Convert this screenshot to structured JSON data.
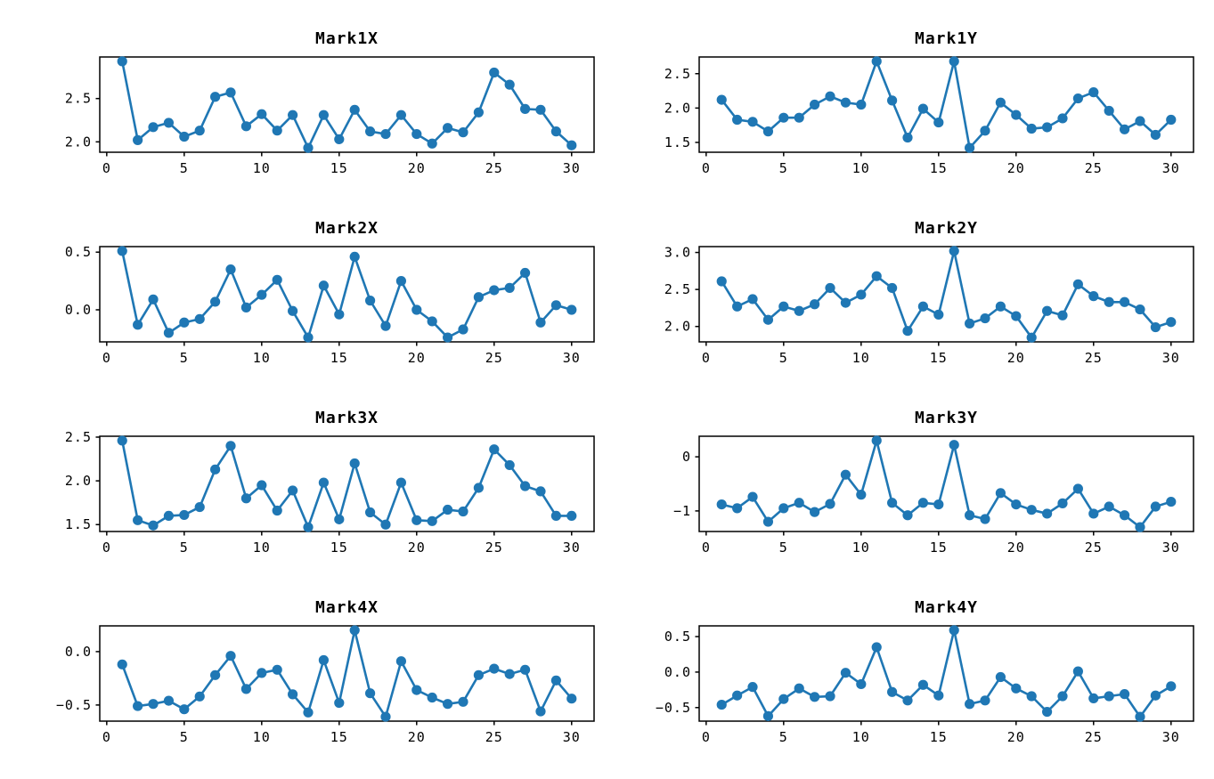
{
  "figure": {
    "background_color": "#ffffff",
    "line_color": "#1f77b4",
    "axes_edge_color": "#000000",
    "text_color": "#000000"
  },
  "chart_data": {
    "type": "line",
    "marker": "o",
    "grid": false,
    "legend": null,
    "layout": "4 rows x 2 columns",
    "x": [
      1,
      2,
      3,
      4,
      5,
      6,
      7,
      8,
      9,
      10,
      11,
      12,
      13,
      14,
      15,
      16,
      17,
      18,
      19,
      20,
      21,
      22,
      23,
      24,
      25,
      26,
      27,
      28,
      29,
      30
    ],
    "xticks": [
      0,
      5,
      10,
      15,
      20,
      25,
      30
    ],
    "xtick_labels": [
      "0",
      "5",
      "10",
      "15",
      "20",
      "25",
      "30"
    ],
    "xlim": [
      -0.45,
      31.45
    ],
    "subplots": [
      {
        "title": "Mark1X",
        "values": [
          2.93,
          2.02,
          2.17,
          2.22,
          2.06,
          2.13,
          2.52,
          2.57,
          2.18,
          2.32,
          2.13,
          2.31,
          1.93,
          2.31,
          2.03,
          2.37,
          2.12,
          2.09,
          2.31,
          2.09,
          1.98,
          2.16,
          2.11,
          2.34,
          2.8,
          2.66,
          2.38,
          2.37,
          2.12,
          1.96
        ],
        "yticks": [
          2.0,
          2.5
        ],
        "ytick_labels": [
          "2.0",
          "2.5"
        ],
        "ylim": [
          1.88,
          2.98
        ]
      },
      {
        "title": "Mark1Y",
        "values": [
          2.12,
          1.83,
          1.8,
          1.66,
          1.86,
          1.86,
          2.05,
          2.17,
          2.08,
          2.05,
          2.68,
          2.11,
          1.57,
          1.99,
          1.79,
          2.68,
          1.42,
          1.67,
          2.08,
          1.9,
          1.7,
          1.72,
          1.85,
          2.14,
          2.23,
          1.96,
          1.69,
          1.81,
          1.61,
          1.83
        ],
        "yticks": [
          1.5,
          2.0,
          2.5
        ],
        "ytick_labels": [
          "1.5",
          "2.0",
          "2.5"
        ],
        "ylim": [
          1.357,
          2.743
        ]
      },
      {
        "title": "Mark2X",
        "values": [
          0.51,
          -0.13,
          0.09,
          -0.2,
          -0.11,
          -0.08,
          0.07,
          0.35,
          0.02,
          0.13,
          0.26,
          -0.01,
          -0.24,
          0.21,
          -0.04,
          0.46,
          0.08,
          -0.14,
          0.25,
          0.0,
          -0.1,
          -0.24,
          -0.17,
          0.11,
          0.17,
          0.19,
          0.32,
          -0.11,
          0.04,
          0.0
        ],
        "yticks": [
          0.0,
          0.5
        ],
        "ytick_labels": [
          "0.0",
          "0.5"
        ],
        "ylim": [
          -0.278,
          0.548
        ]
      },
      {
        "title": "Mark2Y",
        "values": [
          2.61,
          2.27,
          2.37,
          2.09,
          2.27,
          2.21,
          2.3,
          2.52,
          2.32,
          2.43,
          2.68,
          2.52,
          1.94,
          2.27,
          2.16,
          3.02,
          2.04,
          2.11,
          2.27,
          2.14,
          1.85,
          2.21,
          2.15,
          2.57,
          2.41,
          2.33,
          2.33,
          2.23,
          1.99,
          2.06
        ],
        "yticks": [
          2.0,
          2.5,
          3.0
        ],
        "ytick_labels": [
          "2.0",
          "2.5",
          "3.0"
        ],
        "ylim": [
          1.792,
          3.079
        ]
      },
      {
        "title": "Mark3X",
        "values": [
          2.46,
          1.55,
          1.49,
          1.6,
          1.61,
          1.7,
          2.13,
          2.4,
          1.8,
          1.95,
          1.66,
          1.89,
          1.47,
          1.98,
          1.56,
          2.2,
          1.64,
          1.5,
          1.98,
          1.55,
          1.54,
          1.67,
          1.65,
          1.92,
          2.36,
          2.18,
          1.94,
          1.88,
          1.6,
          1.6
        ],
        "yticks": [
          1.5,
          2.0,
          2.5
        ],
        "ytick_labels": [
          "1.5",
          "2.0",
          "2.5"
        ],
        "ylim": [
          1.421,
          2.51
        ]
      },
      {
        "title": "Mark3Y",
        "values": [
          -0.88,
          -0.95,
          -0.74,
          -1.2,
          -0.95,
          -0.85,
          -1.02,
          -0.87,
          -0.33,
          -0.7,
          0.3,
          -0.85,
          -1.08,
          -0.85,
          -0.88,
          0.22,
          -1.08,
          -1.15,
          -0.67,
          -0.88,
          -0.98,
          -1.05,
          -0.86,
          -0.59,
          -1.05,
          -0.92,
          -1.08,
          -1.3,
          -0.92,
          -0.83
        ],
        "yticks": [
          -1,
          0
        ],
        "ytick_labels": [
          "−1",
          "0"
        ],
        "ylim": [
          -1.38,
          0.38
        ]
      },
      {
        "title": "Mark4X",
        "values": [
          -0.12,
          -0.51,
          -0.49,
          -0.46,
          -0.54,
          -0.42,
          -0.22,
          -0.04,
          -0.35,
          -0.2,
          -0.17,
          -0.4,
          -0.57,
          -0.08,
          -0.48,
          0.2,
          -0.39,
          -0.61,
          -0.09,
          -0.36,
          -0.43,
          -0.49,
          -0.47,
          -0.22,
          -0.16,
          -0.21,
          -0.17,
          -0.56,
          -0.27,
          -0.44
        ],
        "yticks": [
          -0.5,
          0.0
        ],
        "ytick_labels": [
          "−0.5",
          "0.0"
        ],
        "ylim": [
          -0.651,
          0.241
        ]
      },
      {
        "title": "Mark4Y",
        "values": [
          -0.46,
          -0.33,
          -0.21,
          -0.62,
          -0.38,
          -0.23,
          -0.35,
          -0.34,
          -0.01,
          -0.17,
          0.35,
          -0.28,
          -0.4,
          -0.18,
          -0.33,
          0.59,
          -0.45,
          -0.4,
          -0.07,
          -0.23,
          -0.34,
          -0.56,
          -0.34,
          0.01,
          -0.37,
          -0.34,
          -0.31,
          -0.63,
          -0.33,
          -0.2
        ],
        "yticks": [
          -0.5,
          0.0,
          0.5
        ],
        "ytick_labels": [
          "−0.5",
          "0.0",
          "0.5"
        ],
        "ylim": [
          -0.691,
          0.651
        ]
      }
    ]
  }
}
